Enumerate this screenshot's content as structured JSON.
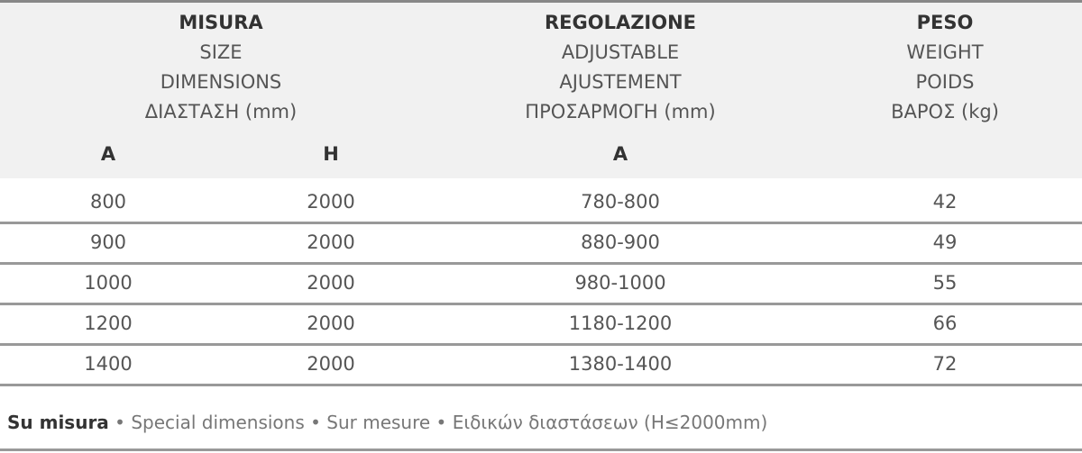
{
  "header": {
    "size": [
      "MISURA",
      "SIZE",
      "DIMENSIONS",
      "ΔΙΑΣΤΑΣΗ (mm)"
    ],
    "adjust": [
      "REGOLAZIONE",
      "ADJUSTABLE",
      "AJUSTEMENT",
      "ΠΡΟΣΑΡΜΟΓΗ (mm)"
    ],
    "weight": [
      "PESO",
      "WEIGHT",
      "POIDS",
      "ΒΑΡΟΣ (kg)"
    ],
    "sub": [
      "A",
      "H",
      "A"
    ]
  },
  "rows": [
    [
      "800",
      "2000",
      "780-800",
      "42"
    ],
    [
      "900",
      "2000",
      "880-900",
      "49"
    ],
    [
      "1000",
      "2000",
      "980-1000",
      "55"
    ],
    [
      "1200",
      "2000",
      "1180-1200",
      "66"
    ],
    [
      "1400",
      "2000",
      "1380-1400",
      "72"
    ]
  ],
  "footer": {
    "bold": "Su misura",
    "rest": " • Special dimensions • Sur mesure • Ειδικών διαστάσεων (H≤2000mm)"
  }
}
